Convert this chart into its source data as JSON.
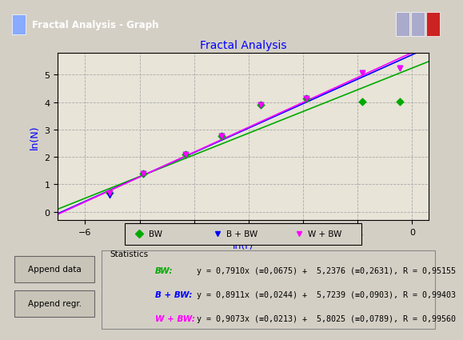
{
  "title": "Fractal Analysis",
  "xlabel": "ln(r)",
  "ylabel": "ln(N)",
  "xlim": [
    -6.5,
    0.3
  ],
  "ylim": [
    -0.3,
    5.8
  ],
  "xticks": [
    -6,
    -5,
    -4,
    -3,
    -2,
    -1,
    0
  ],
  "yticks": [
    0,
    1,
    2,
    3,
    4,
    5
  ],
  "bg_color": "#d4cfc5",
  "plot_bg_color": "#e8e4d8",
  "BW_color": "#00aa00",
  "BBW_color": "#0000ff",
  "WBW_color": "#ff00ff",
  "BW_points_x": [
    -5.545,
    -4.942,
    -4.159,
    -3.497,
    -2.773,
    -1.946,
    -0.916,
    -0.223
  ],
  "BW_points_y": [
    0.693,
    1.386,
    2.079,
    2.773,
    3.912,
    4.127,
    4.025,
    4.025
  ],
  "BBW_points_x": [
    -5.545,
    -4.942,
    -4.159,
    -3.497,
    -2.773,
    -1.946,
    -0.916,
    -0.223
  ],
  "BBW_points_y": [
    0.609,
    1.386,
    2.079,
    2.773,
    3.912,
    4.127,
    5.075,
    5.247
  ],
  "WBW_points_x": [
    -5.545,
    -4.942,
    -4.159,
    -3.497,
    -2.773,
    -1.946,
    -0.916,
    -0.223
  ],
  "WBW_points_y": [
    0.694,
    1.386,
    2.079,
    2.773,
    3.912,
    4.127,
    5.075,
    5.247
  ],
  "BW_slope": 0.791,
  "BW_intercept": 5.2376,
  "BBW_slope": 0.8911,
  "BBW_intercept": 5.7239,
  "WBW_slope": 0.9073,
  "WBW_intercept": 5.8025,
  "window_title": "Fractal Analysis - Graph",
  "titlebar_color": "#0050c8",
  "button_color": "#c8c4b8",
  "stat_label_BW": "BW:",
  "stat_label_BBW": "B + BW:",
  "stat_label_WBW": "W + BW:",
  "stat_text_BW": "y = 0,7910x (≡0,0675) +  5,2376 (≡0,2631), R = 0,95155",
  "stat_text_BBW": "y = 0,8911x (≡0,0244) +  5,7239 (≡0,0903), R = 0,99403",
  "stat_text_WBW": "y = 0,9073x (≡0,0213) +  5,8025 (≡0,0789), R = 0,99560",
  "legend_labels": [
    "BW",
    "B + BW",
    "W + BW"
  ],
  "btn_label1": "Append data",
  "btn_label2": "Append regr."
}
